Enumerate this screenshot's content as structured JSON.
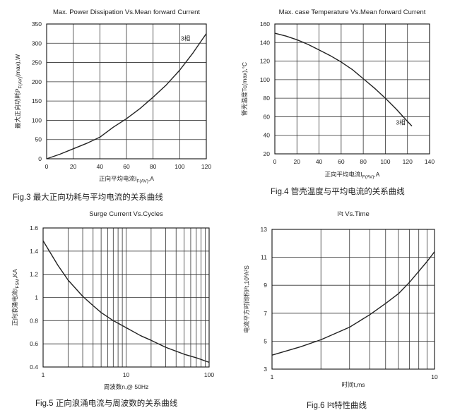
{
  "chart_data": [
    {
      "type": "line",
      "title": "Max. Power Dissipation Vs.Mean forward Current",
      "caption": "Fig.3 最大正向功耗与平均电流的关系曲线",
      "xlabel": "正向平均电流I",
      "xlabel_sub": "F(AV)",
      "xlabel_tail": ",A",
      "ylabel": "最大正向功耗P",
      "ylabel_sub": "F(AV)",
      "ylabel_tail": "(max),W",
      "annotation": "3相",
      "x_scale": "linear",
      "y_scale": "linear",
      "xlim": [
        0,
        120
      ],
      "ylim": [
        0,
        350
      ],
      "xticks": [
        0,
        20,
        40,
        60,
        80,
        100,
        120
      ],
      "yticks": [
        0,
        50,
        100,
        150,
        200,
        250,
        300,
        350
      ],
      "xtick_labels": [
        "0",
        "20",
        "40",
        "60",
        "80",
        "100",
        "120"
      ],
      "ytick_labels": [
        "0",
        "50",
        "100",
        "150",
        "200",
        "250",
        "300",
        "350"
      ],
      "grid": true,
      "series": [
        {
          "x": [
            0,
            10,
            20,
            30,
            40,
            50,
            60,
            70,
            80,
            90,
            100,
            110,
            120
          ],
          "y": [
            0,
            12,
            26,
            40,
            56,
            82,
            104,
            130,
            160,
            192,
            230,
            275,
            325
          ]
        }
      ]
    },
    {
      "type": "line",
      "title": "Max. case Temperature Vs.Mean forward Current",
      "caption": "Fig.4 管壳温度与平均电流的关系曲线",
      "xlabel": "正向平均电流I",
      "xlabel_sub": "F(AV)",
      "xlabel_tail": ",A",
      "ylabel": "管壳温度Tc(max),°C",
      "annotation": "3相",
      "x_scale": "linear",
      "y_scale": "linear",
      "xlim": [
        0,
        140
      ],
      "ylim": [
        20,
        160
      ],
      "xticks": [
        0,
        20,
        40,
        60,
        80,
        100,
        120,
        140
      ],
      "yticks": [
        20,
        40,
        60,
        80,
        100,
        120,
        140,
        160
      ],
      "xtick_labels": [
        "0",
        "20",
        "40",
        "60",
        "80",
        "100",
        "120",
        "140"
      ],
      "ytick_labels": [
        "20",
        "40",
        "60",
        "80",
        "100",
        "120",
        "140",
        "160"
      ],
      "grid": true,
      "series": [
        {
          "x": [
            0,
            10,
            20,
            30,
            40,
            50,
            60,
            70,
            80,
            90,
            100,
            110,
            120,
            124
          ],
          "y": [
            150,
            147,
            143,
            138,
            132,
            126,
            119,
            111,
            101,
            91,
            80,
            68,
            55,
            50
          ]
        }
      ]
    },
    {
      "type": "line",
      "title": "Surge Current Vs.Cycles",
      "caption": "Fig.5 正向浪涌电流与周波数的关系曲线",
      "xlabel": "周波数n,@ 50Hz",
      "ylabel": "正向浪涌电流I",
      "ylabel_sub": "FSM",
      "ylabel_tail": ",KA",
      "x_scale": "log",
      "y_scale": "linear",
      "xlim": [
        1,
        100
      ],
      "ylim": [
        0.4,
        1.6
      ],
      "xticks": [
        1,
        10,
        100
      ],
      "yticks": [
        0.4,
        0.6,
        0.8,
        1.0,
        1.2,
        1.4,
        1.6
      ],
      "xtick_labels": [
        "1",
        "10",
        "100"
      ],
      "ytick_labels": [
        "0.4",
        "0.6",
        "0.8",
        "1",
        "1.2",
        "1.4",
        "1.6"
      ],
      "grid": true,
      "series": [
        {
          "x": [
            1,
            1.5,
            2,
            3,
            4,
            5,
            7,
            10,
            15,
            20,
            30,
            50,
            70,
            100
          ],
          "y": [
            1.49,
            1.28,
            1.15,
            1.01,
            0.93,
            0.87,
            0.8,
            0.74,
            0.67,
            0.63,
            0.57,
            0.51,
            0.48,
            0.44
          ]
        }
      ]
    },
    {
      "type": "line",
      "title": "I²t  Vs.Time",
      "caption": "Fig.6 I²t特性曲线",
      "xlabel": "时间t,ms",
      "ylabel": "电流平方时间积I²t,10³A²S",
      "x_scale": "log",
      "y_scale": "linear",
      "xlim": [
        1,
        10
      ],
      "ylim": [
        3,
        13
      ],
      "xticks": [
        1,
        10
      ],
      "yticks": [
        3,
        5,
        7,
        9,
        11,
        13
      ],
      "xtick_labels": [
        "1",
        "10"
      ],
      "ytick_labels": [
        "3",
        "5",
        "7",
        "9",
        "11",
        "13"
      ],
      "grid": true,
      "series": [
        {
          "x": [
            1,
            1.5,
            2,
            3,
            4,
            5,
            6,
            7,
            8,
            9,
            10
          ],
          "y": [
            4.0,
            4.6,
            5.1,
            6.0,
            6.9,
            7.7,
            8.4,
            9.2,
            10.0,
            10.7,
            11.4
          ]
        }
      ]
    }
  ]
}
